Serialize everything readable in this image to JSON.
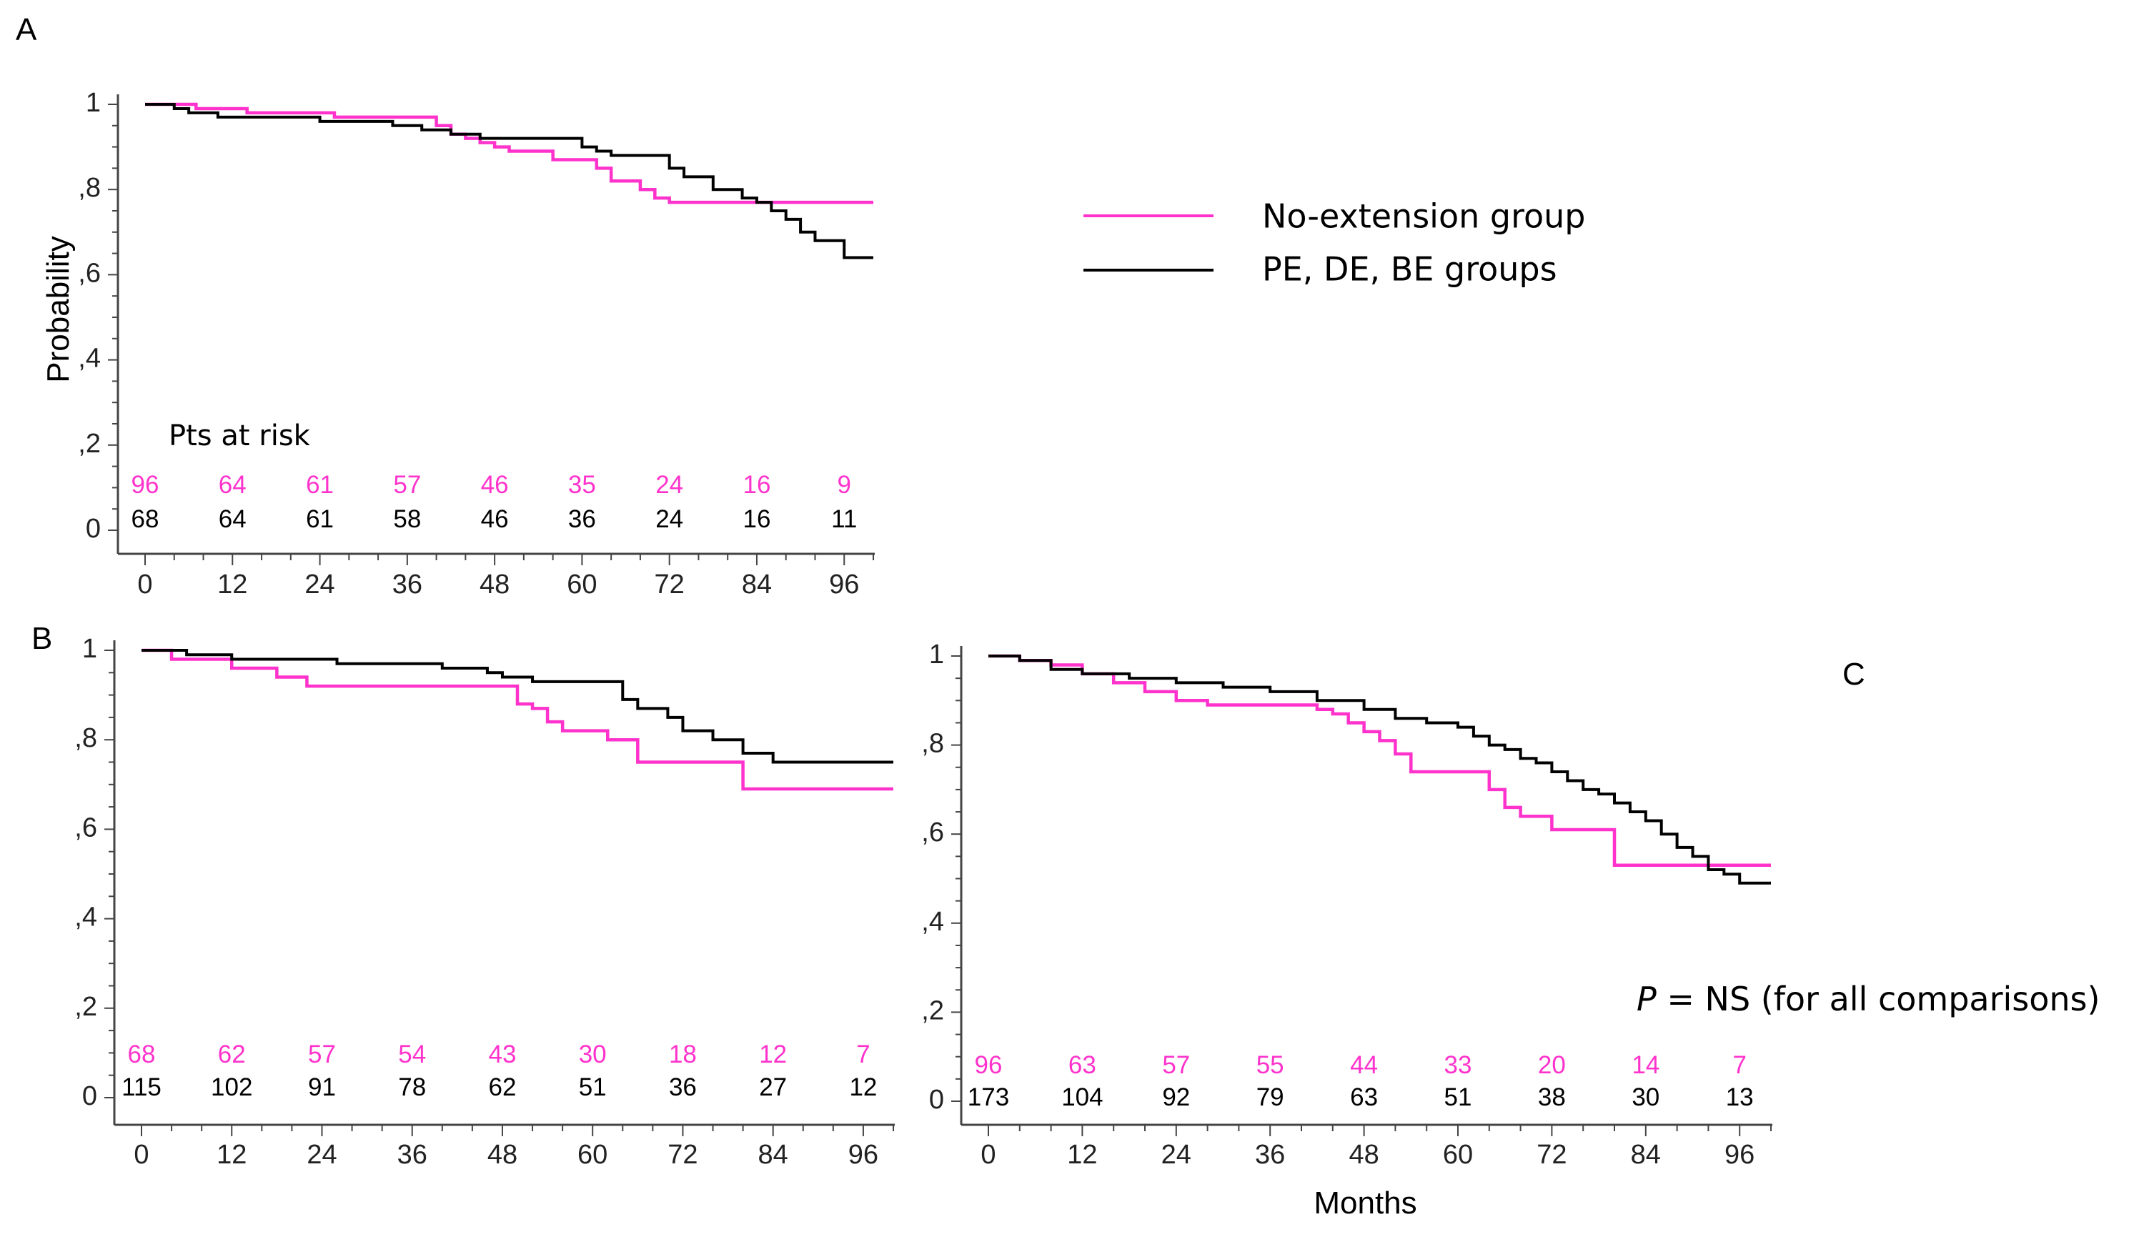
{
  "figure": {
    "legend": {
      "entries": [
        {
          "label": "No-extension group",
          "color": "#ff33cc"
        },
        {
          "label": "PE, DE, BE groups",
          "color": "#000000"
        }
      ]
    },
    "p_value_note": {
      "p": "P",
      "rest": " = NS (for all comparisons)"
    },
    "shared_xlabel": "Months",
    "shared_ylabel": "Probability",
    "risk_table_title": "Pts at risk"
  },
  "colors": {
    "series_a": "#ff33cc",
    "series_b": "#000000",
    "axis": "#444444"
  },
  "chart_data": [
    {
      "panel": "A",
      "type": "line",
      "step": true,
      "xlim": [
        0,
        100
      ],
      "ylim": [
        0,
        1
      ],
      "xticks": [
        0,
        12,
        24,
        36,
        48,
        60,
        72,
        84,
        96
      ],
      "xtick_labels": [
        "0",
        "12",
        "24",
        "36",
        "48",
        "60",
        "72",
        "84",
        "96"
      ],
      "yticks": [
        0,
        0.2,
        0.4,
        0.6,
        0.8,
        1
      ],
      "ytick_labels": [
        "0",
        ",2",
        ",4",
        ",6",
        ",8",
        "1"
      ],
      "ylabel": "Probability",
      "xlabel": "",
      "series": [
        {
          "name": "No-extension group",
          "color": "#ff33cc",
          "x": [
            0,
            2,
            4,
            7,
            14,
            22,
            26,
            30,
            34,
            36,
            40,
            42,
            44,
            46,
            48,
            50,
            56,
            60,
            62,
            64,
            68,
            70,
            72,
            76,
            80,
            84,
            88,
            92,
            96,
            100
          ],
          "y": [
            1,
            1,
            1,
            0.99,
            0.98,
            0.98,
            0.97,
            0.97,
            0.97,
            0.97,
            0.95,
            0.93,
            0.92,
            0.91,
            0.9,
            0.89,
            0.87,
            0.87,
            0.85,
            0.82,
            0.8,
            0.78,
            0.77,
            0.77,
            0.77,
            0.77,
            0.77,
            0.77,
            0.77,
            0.77
          ]
        },
        {
          "name": "PE, DE, BE groups",
          "color": "#000000",
          "x": [
            0,
            4,
            6,
            10,
            14,
            24,
            30,
            34,
            38,
            42,
            46,
            50,
            54,
            58,
            60,
            62,
            64,
            72,
            74,
            78,
            82,
            84,
            86,
            88,
            90,
            92,
            96,
            100
          ],
          "y": [
            1,
            0.99,
            0.98,
            0.97,
            0.97,
            0.96,
            0.96,
            0.95,
            0.94,
            0.93,
            0.92,
            0.92,
            0.92,
            0.92,
            0.9,
            0.89,
            0.88,
            0.85,
            0.83,
            0.8,
            0.78,
            0.77,
            0.75,
            0.73,
            0.7,
            0.68,
            0.64,
            0.64
          ]
        }
      ],
      "risk_table": {
        "title": "Pts at risk",
        "x": [
          0,
          12,
          24,
          36,
          48,
          60,
          72,
          84,
          96
        ],
        "rows": [
          {
            "color": "#ff33cc",
            "values": [
              "96",
              "64",
              "61",
              "57",
              "46",
              "35",
              "24",
              "16",
              "9"
            ]
          },
          {
            "color": "#000000",
            "values": [
              "68",
              "64",
              "61",
              "58",
              "46",
              "36",
              "24",
              "16",
              "11"
            ]
          }
        ]
      }
    },
    {
      "panel": "B",
      "type": "line",
      "step": true,
      "xlim": [
        0,
        100
      ],
      "ylim": [
        0,
        1
      ],
      "xticks": [
        0,
        12,
        24,
        36,
        48,
        60,
        72,
        84,
        96
      ],
      "xtick_labels": [
        "0",
        "12",
        "24",
        "36",
        "48",
        "60",
        "72",
        "84",
        "96"
      ],
      "yticks": [
        0,
        0.2,
        0.4,
        0.6,
        0.8,
        1
      ],
      "ytick_labels": [
        "0",
        ",2",
        ",4",
        ",6",
        ",8",
        "1"
      ],
      "ylabel": "",
      "xlabel": "",
      "series": [
        {
          "name": "No-extension group",
          "color": "#ff33cc",
          "x": [
            0,
            4,
            12,
            18,
            22,
            48,
            50,
            52,
            54,
            56,
            60,
            62,
            66,
            76,
            80,
            84,
            88,
            100
          ],
          "y": [
            1,
            0.98,
            0.96,
            0.94,
            0.92,
            0.92,
            0.88,
            0.87,
            0.84,
            0.82,
            0.82,
            0.8,
            0.75,
            0.75,
            0.69,
            0.69,
            0.69,
            0.69
          ]
        },
        {
          "name": "PE, DE, BE groups",
          "color": "#000000",
          "x": [
            0,
            6,
            12,
            22,
            26,
            34,
            40,
            46,
            48,
            52,
            54,
            62,
            64,
            66,
            70,
            72,
            76,
            80,
            84,
            100
          ],
          "y": [
            1,
            0.99,
            0.98,
            0.98,
            0.97,
            0.97,
            0.96,
            0.95,
            0.94,
            0.93,
            0.93,
            0.93,
            0.89,
            0.87,
            0.85,
            0.82,
            0.8,
            0.77,
            0.75,
            0.75
          ]
        }
      ],
      "risk_table": {
        "title": "",
        "x": [
          0,
          12,
          24,
          36,
          48,
          60,
          72,
          84,
          96
        ],
        "rows": [
          {
            "color": "#ff33cc",
            "values": [
              "68",
              "62",
              "57",
              "54",
              "43",
              "30",
              "18",
              "12",
              "7"
            ]
          },
          {
            "color": "#000000",
            "values": [
              "115",
              "102",
              "91",
              "78",
              "62",
              "51",
              "36",
              "27",
              "12"
            ]
          }
        ]
      }
    },
    {
      "panel": "C",
      "type": "line",
      "step": true,
      "xlim": [
        0,
        100
      ],
      "ylim": [
        0,
        1
      ],
      "xticks": [
        0,
        12,
        24,
        36,
        48,
        60,
        72,
        84,
        96
      ],
      "xtick_labels": [
        "0",
        "12",
        "24",
        "36",
        "48",
        "60",
        "72",
        "84",
        "96"
      ],
      "yticks": [
        0,
        0.2,
        0.4,
        0.6,
        0.8,
        1
      ],
      "ytick_labels": [
        "0",
        ",2",
        ",4",
        ",6",
        ",8",
        "1"
      ],
      "ylabel": "",
      "xlabel": "Months",
      "series": [
        {
          "name": "No-extension group",
          "color": "#ff33cc",
          "x": [
            0,
            4,
            8,
            12,
            16,
            20,
            24,
            28,
            40,
            42,
            44,
            46,
            48,
            50,
            52,
            54,
            62,
            64,
            66,
            68,
            72,
            78,
            80,
            92,
            100
          ],
          "y": [
            1,
            0.99,
            0.98,
            0.96,
            0.94,
            0.92,
            0.9,
            0.89,
            0.89,
            0.88,
            0.87,
            0.85,
            0.83,
            0.81,
            0.78,
            0.74,
            0.74,
            0.7,
            0.66,
            0.64,
            0.61,
            0.61,
            0.53,
            0.53,
            0.53
          ]
        },
        {
          "name": "PE, DE, BE groups",
          "color": "#000000",
          "x": [
            0,
            4,
            8,
            12,
            18,
            24,
            30,
            36,
            42,
            48,
            52,
            56,
            60,
            62,
            64,
            66,
            68,
            70,
            72,
            74,
            76,
            78,
            80,
            82,
            84,
            86,
            88,
            90,
            92,
            94,
            96,
            100
          ],
          "y": [
            1,
            0.99,
            0.97,
            0.96,
            0.95,
            0.94,
            0.93,
            0.92,
            0.9,
            0.88,
            0.86,
            0.85,
            0.84,
            0.82,
            0.8,
            0.79,
            0.77,
            0.76,
            0.74,
            0.72,
            0.7,
            0.69,
            0.67,
            0.65,
            0.63,
            0.6,
            0.57,
            0.55,
            0.52,
            0.51,
            0.49,
            0.49
          ]
        }
      ],
      "risk_table": {
        "title": "",
        "x": [
          0,
          12,
          24,
          36,
          48,
          60,
          72,
          84,
          96
        ],
        "rows": [
          {
            "color": "#ff33cc",
            "values": [
              "96",
              "63",
              "57",
              "55",
              "44",
              "33",
              "20",
              "14",
              "7"
            ]
          },
          {
            "color": "#000000",
            "values": [
              "173",
              "104",
              "92",
              "79",
              "63",
              "51",
              "38",
              "30",
              "13"
            ]
          }
        ]
      }
    }
  ]
}
